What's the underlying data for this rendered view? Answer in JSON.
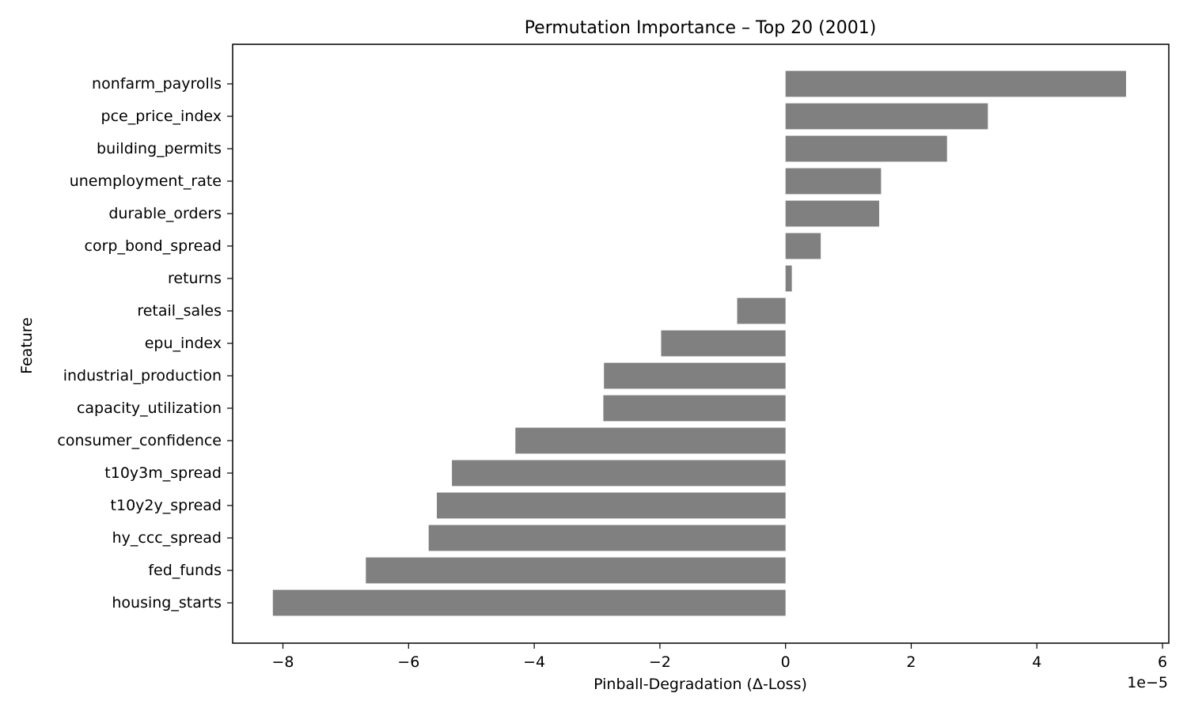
{
  "chart_data": {
    "type": "bar",
    "orientation": "horizontal",
    "title": "Permutation Importance – Top 20 (2001)",
    "xlabel": "Pinball-Degradation (Δ-Loss)",
    "ylabel": "Feature",
    "x_offset_label": "1e−5",
    "x_scale_exponent": -5,
    "xlim": [
      -8.8,
      6.1
    ],
    "x_ticks": [
      -8,
      -6,
      -4,
      -2,
      0,
      2,
      4,
      6
    ],
    "x_tick_labels": [
      "−8",
      "−6",
      "−4",
      "−2",
      "0",
      "2",
      "4",
      "6"
    ],
    "bar_color": "#808080",
    "grid": false,
    "legend": "none",
    "categories": [
      "nonfarm_payrolls",
      "pce_price_index",
      "building_permits",
      "unemployment_rate",
      "durable_orders",
      "corp_bond_spread",
      "returns",
      "retail_sales",
      "epu_index",
      "industrial_production",
      "capacity_utilization",
      "consumer_confidence",
      "t10y3m_spread",
      "t10y2y_spread",
      "hy_ccc_spread",
      "fed_funds",
      "housing_starts"
    ],
    "values": [
      5.42,
      3.22,
      2.57,
      1.52,
      1.49,
      0.56,
      0.1,
      -0.77,
      -1.98,
      -2.89,
      -2.9,
      -4.3,
      -5.31,
      -5.55,
      -5.68,
      -6.68,
      -8.16
    ]
  }
}
